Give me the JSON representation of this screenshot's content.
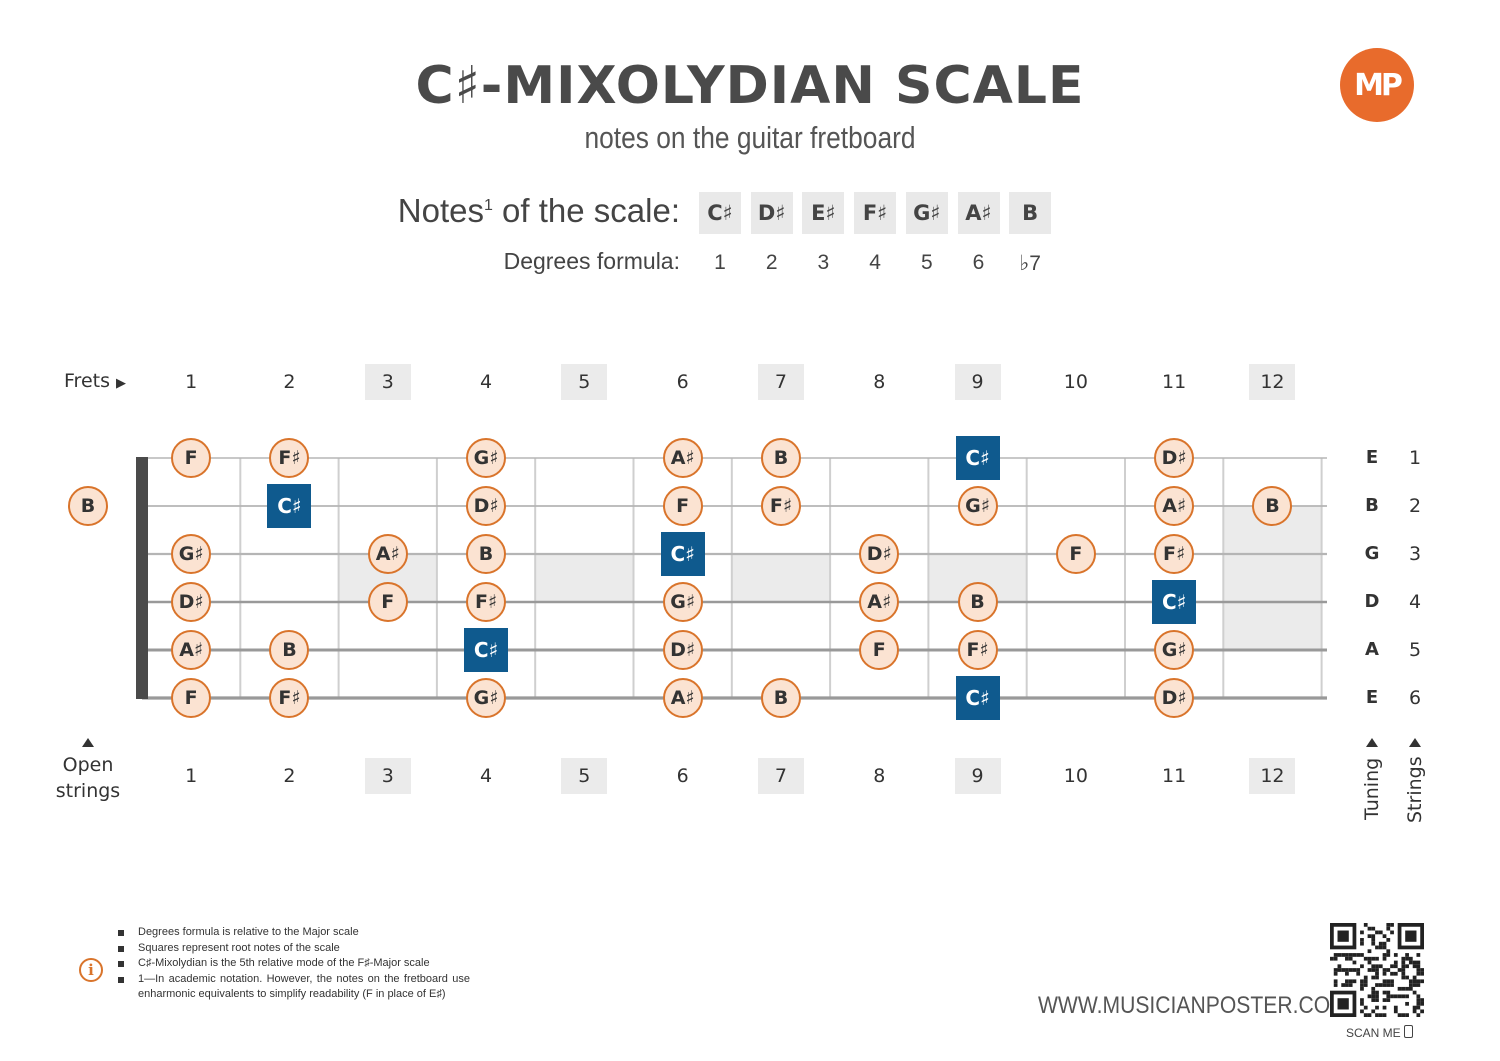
{
  "title": "C♯-MIXOLYDIAN SCALE",
  "subtitle": "notes on the guitar fretboard",
  "logo": "MP",
  "scale_label": "Notes",
  "scale_label_sup": "1",
  "scale_label_rest": " of the scale:",
  "degrees_label": "Degrees formula:",
  "scale_notes": [
    "C♯",
    "D♯",
    "E♯",
    "F♯",
    "G♯",
    "A♯",
    "B"
  ],
  "degrees": [
    "1",
    "2",
    "3",
    "4",
    "5",
    "6",
    "♭7"
  ],
  "frets_label": "Frets",
  "fret_numbers": [
    "1",
    "2",
    "3",
    "4",
    "5",
    "6",
    "7",
    "8",
    "9",
    "10",
    "11",
    "12"
  ],
  "highlighted_frets": [
    3,
    5,
    7,
    9,
    12
  ],
  "open_label_1": "Open",
  "open_label_2": "strings",
  "tuning": [
    "E",
    "B",
    "G",
    "D",
    "A",
    "E"
  ],
  "string_numbers": [
    "1",
    "2",
    "3",
    "4",
    "5",
    "6"
  ],
  "tuning_label": "Tuning",
  "strings_label": "Strings",
  "colors": {
    "accent": "#d9742b",
    "note_fill": "#fbe3d2",
    "root": "#0f5a8e",
    "marker": "#ebebeb"
  },
  "fretboard_notes": [
    {
      "string": 1,
      "fret": 1,
      "note": "F"
    },
    {
      "string": 1,
      "fret": 2,
      "note": "F♯"
    },
    {
      "string": 1,
      "fret": 4,
      "note": "G♯"
    },
    {
      "string": 1,
      "fret": 6,
      "note": "A♯"
    },
    {
      "string": 1,
      "fret": 7,
      "note": "B"
    },
    {
      "string": 1,
      "fret": 9,
      "note": "C♯",
      "root": true
    },
    {
      "string": 1,
      "fret": 11,
      "note": "D♯"
    },
    {
      "string": 2,
      "fret": 0,
      "note": "B"
    },
    {
      "string": 2,
      "fret": 2,
      "note": "C♯",
      "root": true
    },
    {
      "string": 2,
      "fret": 4,
      "note": "D♯"
    },
    {
      "string": 2,
      "fret": 6,
      "note": "F"
    },
    {
      "string": 2,
      "fret": 7,
      "note": "F♯"
    },
    {
      "string": 2,
      "fret": 9,
      "note": "G♯"
    },
    {
      "string": 2,
      "fret": 11,
      "note": "A♯"
    },
    {
      "string": 2,
      "fret": 12,
      "note": "B"
    },
    {
      "string": 3,
      "fret": 1,
      "note": "G♯"
    },
    {
      "string": 3,
      "fret": 3,
      "note": "A♯"
    },
    {
      "string": 3,
      "fret": 4,
      "note": "B"
    },
    {
      "string": 3,
      "fret": 6,
      "note": "C♯",
      "root": true
    },
    {
      "string": 3,
      "fret": 8,
      "note": "D♯"
    },
    {
      "string": 3,
      "fret": 10,
      "note": "F"
    },
    {
      "string": 3,
      "fret": 11,
      "note": "F♯"
    },
    {
      "string": 4,
      "fret": 1,
      "note": "D♯"
    },
    {
      "string": 4,
      "fret": 3,
      "note": "F"
    },
    {
      "string": 4,
      "fret": 4,
      "note": "F♯"
    },
    {
      "string": 4,
      "fret": 6,
      "note": "G♯"
    },
    {
      "string": 4,
      "fret": 8,
      "note": "A♯"
    },
    {
      "string": 4,
      "fret": 9,
      "note": "B"
    },
    {
      "string": 4,
      "fret": 11,
      "note": "C♯",
      "root": true
    },
    {
      "string": 5,
      "fret": 1,
      "note": "A♯"
    },
    {
      "string": 5,
      "fret": 2,
      "note": "B"
    },
    {
      "string": 5,
      "fret": 4,
      "note": "C♯",
      "root": true
    },
    {
      "string": 5,
      "fret": 6,
      "note": "D♯"
    },
    {
      "string": 5,
      "fret": 8,
      "note": "F"
    },
    {
      "string": 5,
      "fret": 9,
      "note": "F♯"
    },
    {
      "string": 5,
      "fret": 11,
      "note": "G♯"
    },
    {
      "string": 6,
      "fret": 1,
      "note": "F"
    },
    {
      "string": 6,
      "fret": 2,
      "note": "F♯"
    },
    {
      "string": 6,
      "fret": 4,
      "note": "G♯"
    },
    {
      "string": 6,
      "fret": 6,
      "note": "A♯"
    },
    {
      "string": 6,
      "fret": 7,
      "note": "B"
    },
    {
      "string": 6,
      "fret": 9,
      "note": "C♯",
      "root": true
    },
    {
      "string": 6,
      "fret": 11,
      "note": "D♯"
    }
  ],
  "footnotes": [
    "Degrees formula is relative to the Major scale",
    "Squares represent root notes of the scale",
    "C♯-Mixolydian is the 5th relative mode of the F♯-Major scale",
    "1—In academic notation. However, the notes on the fretboard use enharmonic equivalents to simplify readability (F in place of E♯)"
  ],
  "website": "WWW.MUSICIANPOSTER.COM",
  "scan_label": "SCAN ME"
}
